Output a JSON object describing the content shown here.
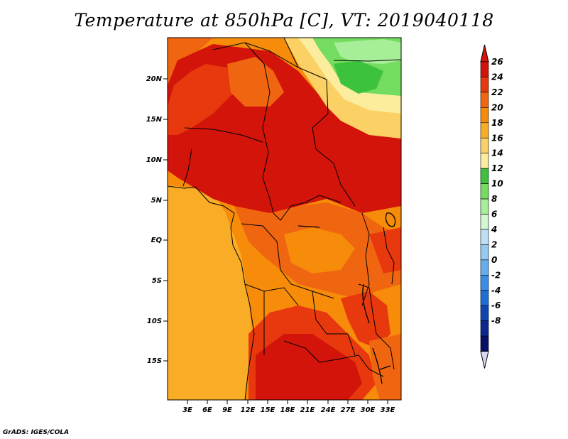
{
  "title": "Temperature at 850hPa [C], VT: 2019040118",
  "credit": "GrADS: IGES/COLA",
  "map": {
    "lat_labels": [
      "20N",
      "15N",
      "10N",
      "5N",
      "EQ",
      "5S",
      "10S",
      "15S"
    ],
    "lon_labels": [
      "3E",
      "6E",
      "9E",
      "12E",
      "15E",
      "18E",
      "21E",
      "24E",
      "27E",
      "30E",
      "33E"
    ]
  },
  "colorbar": {
    "labels": [
      "26",
      "24",
      "22",
      "20",
      "18",
      "16",
      "14",
      "12",
      "10",
      "8",
      "6",
      "4",
      "2",
      "0",
      "-2",
      "-4",
      "-6",
      "-8"
    ],
    "colors": [
      "#d2140a",
      "#e8380e",
      "#f06610",
      "#f68c0a",
      "#f9ad26",
      "#fbd064",
      "#fcec9e",
      "#3cc23c",
      "#74dc5e",
      "#a6ee98",
      "#d4f6d0",
      "#bde0f7",
      "#94caf2",
      "#64aef0",
      "#3b8ee8",
      "#1e6ed8",
      "#0f46b4",
      "#0a2890",
      "#070e66"
    ],
    "over_color": "#d2140a",
    "under_color": "#d6d8ee"
  }
}
